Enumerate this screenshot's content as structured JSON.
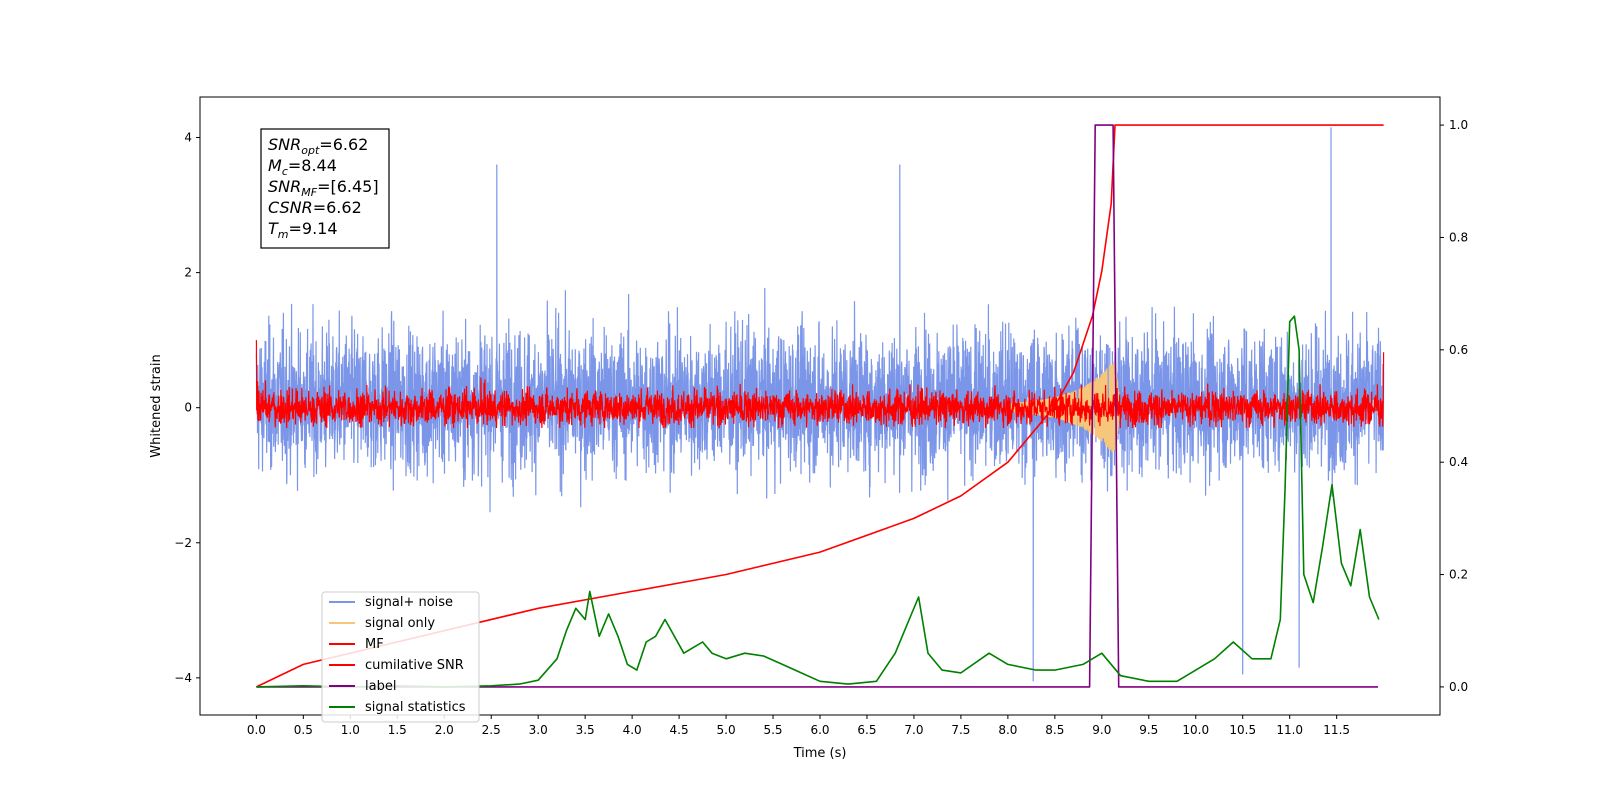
{
  "chart_data": {
    "type": "line",
    "xlabel": "Time (s)",
    "ylabel": "Whitened strain",
    "xlim": [
      -0.6,
      12.6
    ],
    "ylim": [
      -4.55,
      4.6
    ],
    "y2lim": [
      -0.05,
      1.05
    ],
    "x_ticks": [
      0.0,
      0.5,
      1.0,
      1.5,
      2.0,
      2.5,
      3.0,
      3.5,
      4.0,
      4.5,
      5.0,
      5.5,
      6.0,
      6.5,
      7.0,
      7.5,
      8.0,
      8.5,
      9.0,
      9.5,
      10.0,
      10.5,
      11.0,
      11.5
    ],
    "x_tick_labels": [
      "0.0",
      "0.5",
      "1.0",
      "1.5",
      "2.0",
      "2.5",
      "3.0",
      "3.5",
      "4.0",
      "4.5",
      "5.0",
      "5.5",
      "6.0",
      "6.5",
      "7.0",
      "7.5",
      "8.0",
      "8.5",
      "9.0",
      "9.5",
      "10.0",
      "10.5",
      "11.0",
      "11.5"
    ],
    "y_ticks": [
      -4,
      -2,
      0,
      2,
      4
    ],
    "y_tick_labels": [
      "−4",
      "−2",
      "0",
      "2",
      "4"
    ],
    "y2_ticks": [
      0.0,
      0.2,
      0.4,
      0.6,
      0.8,
      1.0
    ],
    "y2_tick_labels": [
      "0.0",
      "0.2",
      "0.4",
      "0.6",
      "0.8",
      "1.0"
    ],
    "grid": false,
    "legend_position": "lower-left",
    "annotation": {
      "position": "top-left",
      "lines": [
        {
          "sym": "SNR",
          "sub": "opt",
          "value": "=6.62"
        },
        {
          "sym": "M",
          "sub": "c",
          "value": "=8.44"
        },
        {
          "sym": "SNR",
          "sub": "MF",
          "value": "=[6.45]"
        },
        {
          "sym": "CSNR",
          "sub": "",
          "value": "=6.62"
        },
        {
          "sym": "T",
          "sub": "m",
          "value": "=9.14"
        }
      ]
    },
    "series": [
      {
        "name": "signal+ noise",
        "axis": "left",
        "color": "#7b96e8",
        "description": "whitened noise fluctuating roughly between -3 and 3.5 over 0–12 s",
        "x_range": [
          0.0,
          12.0
        ],
        "amplitude_std": 1.0,
        "max_peaks": [
          {
            "x": 11.44,
            "y": 4.15
          },
          {
            "x": 2.56,
            "y": 3.6
          },
          {
            "x": 6.85,
            "y": 3.6
          }
        ],
        "min_peaks": [
          {
            "x": 8.27,
            "y": -4.05
          },
          {
            "x": 10.5,
            "y": -3.95
          },
          {
            "x": 11.1,
            "y": -3.85
          }
        ]
      },
      {
        "name": "signal only",
        "axis": "left",
        "color": "#f6c77a",
        "description": "chirp signal growing in amplitude until merger",
        "chirp_envelope": {
          "x": [
            8.0,
            8.5,
            8.8,
            9.0,
            9.1,
            9.14,
            9.2
          ],
          "amp": [
            0.05,
            0.15,
            0.3,
            0.5,
            0.65,
            0.7,
            0.0
          ]
        }
      },
      {
        "name": "MF",
        "axis": "left",
        "color": "#ff0000",
        "description": "matched filter output, noise-like band about ±0.35",
        "x_range": [
          0.0,
          12.0
        ],
        "amplitude_std": 0.15,
        "endpoints": [
          {
            "x": 0.0,
            "y": 1.0
          },
          {
            "x": 12.0,
            "y": 0.82
          }
        ]
      },
      {
        "name": "cumilative SNR",
        "axis": "right",
        "color": "#ff0000",
        "x": [
          0.0,
          0.5,
          1.0,
          2.0,
          3.0,
          4.0,
          5.0,
          6.0,
          7.0,
          7.5,
          8.0,
          8.3,
          8.5,
          8.7,
          8.9,
          9.0,
          9.1,
          9.14,
          12.0
        ],
        "y": [
          0.0,
          0.04,
          0.06,
          0.1,
          0.14,
          0.17,
          0.2,
          0.24,
          0.3,
          0.34,
          0.4,
          0.46,
          0.5,
          0.56,
          0.66,
          0.74,
          0.86,
          1.0,
          1.0
        ]
      },
      {
        "name": "label",
        "axis": "right",
        "color": "#800080",
        "x": [
          0.0,
          8.87,
          8.93,
          9.12,
          9.18,
          11.94
        ],
        "y": [
          0.0,
          0.0,
          1.0,
          1.0,
          0.0,
          0.0
        ]
      },
      {
        "name": "signal statistics",
        "axis": "right",
        "color": "#008000",
        "x": [
          0.0,
          0.5,
          1.0,
          1.5,
          2.0,
          2.5,
          2.8,
          3.0,
          3.2,
          3.3,
          3.4,
          3.5,
          3.55,
          3.65,
          3.75,
          3.85,
          3.95,
          4.05,
          4.15,
          4.25,
          4.35,
          4.45,
          4.55,
          4.65,
          4.75,
          4.85,
          5.0,
          5.2,
          5.4,
          5.6,
          5.8,
          6.0,
          6.3,
          6.6,
          6.8,
          6.95,
          7.05,
          7.15,
          7.3,
          7.5,
          7.8,
          8.0,
          8.3,
          8.5,
          8.8,
          9.0,
          9.2,
          9.5,
          9.8,
          10.0,
          10.2,
          10.4,
          10.6,
          10.8,
          10.9,
          10.95,
          11.0,
          11.05,
          11.1,
          11.15,
          11.25,
          11.35,
          11.45,
          11.55,
          11.65,
          11.75,
          11.85,
          11.95
        ],
        "y": [
          0.0,
          0.002,
          0.0,
          0.002,
          0.0,
          0.002,
          0.005,
          0.012,
          0.05,
          0.1,
          0.14,
          0.12,
          0.17,
          0.09,
          0.13,
          0.09,
          0.04,
          0.03,
          0.08,
          0.09,
          0.12,
          0.09,
          0.06,
          0.07,
          0.08,
          0.06,
          0.05,
          0.06,
          0.055,
          0.04,
          0.025,
          0.01,
          0.005,
          0.01,
          0.06,
          0.12,
          0.16,
          0.06,
          0.03,
          0.025,
          0.06,
          0.04,
          0.03,
          0.03,
          0.04,
          0.06,
          0.02,
          0.01,
          0.01,
          0.03,
          0.05,
          0.08,
          0.05,
          0.05,
          0.12,
          0.35,
          0.65,
          0.66,
          0.6,
          0.2,
          0.15,
          0.25,
          0.36,
          0.22,
          0.18,
          0.28,
          0.16,
          0.12
        ]
      }
    ]
  }
}
